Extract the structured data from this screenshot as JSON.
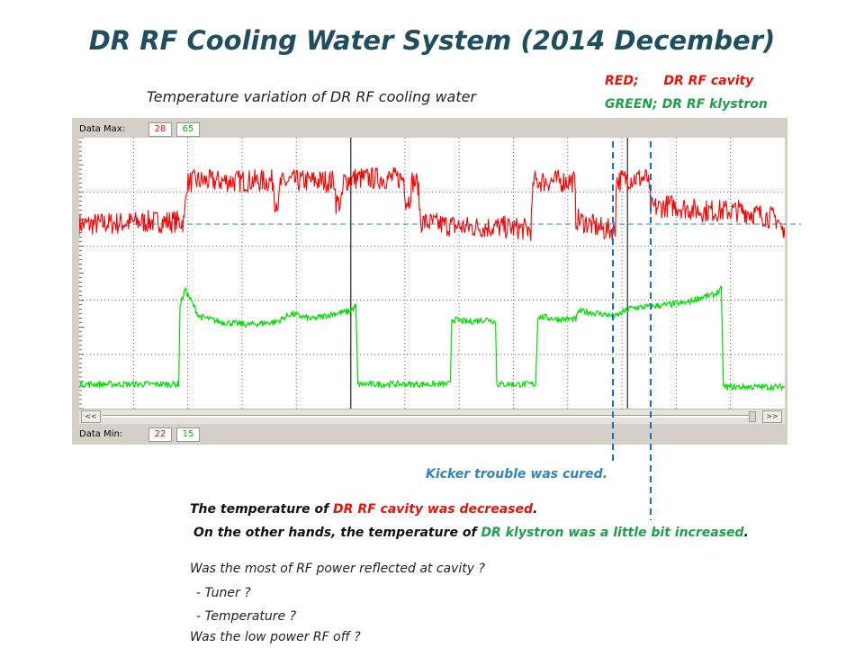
{
  "title": "DR RF Cooling Water System (2014 December)",
  "chart": {
    "subtitle": "Temperature variation of DR RF cooling water",
    "legend": {
      "red_label": "RED;",
      "red_name": "DR RF cavity",
      "green_label": "GREEN;",
      "green_name": "DR RF klystron"
    },
    "data_max_label": "Data Max:",
    "data_max_red": "28",
    "data_max_green": "65",
    "data_min_label": "Data Min:",
    "data_min_red": "22",
    "data_min_green": "15",
    "scroll_left": "<<",
    "scroll_right": ">>"
  },
  "chart_data": {
    "type": "line",
    "title": "Temperature variation of DR RF cooling water",
    "x_range": [
      0,
      100
    ],
    "y_range": [
      0,
      100
    ],
    "grid": true,
    "series": [
      {
        "name": "DR RF cavity",
        "color": "#ff0000",
        "points": [
          [
            0,
            68
          ],
          [
            1,
            68
          ],
          [
            10,
            69
          ],
          [
            14.9,
            69
          ],
          [
            15.2,
            83
          ],
          [
            16,
            84
          ],
          [
            20,
            84
          ],
          [
            25,
            84
          ],
          [
            27.5,
            84
          ],
          [
            27.7,
            77
          ],
          [
            28.3,
            76
          ],
          [
            28.5,
            83
          ],
          [
            30,
            84
          ],
          [
            33,
            84
          ],
          [
            36.2,
            84
          ],
          [
            36.4,
            76
          ],
          [
            37.2,
            76
          ],
          [
            37.5,
            84
          ],
          [
            39,
            85
          ],
          [
            46,
            85
          ],
          [
            46.3,
            77
          ],
          [
            46.8,
            77
          ],
          [
            47.2,
            84
          ],
          [
            48,
            83
          ],
          [
            48.4,
            69
          ],
          [
            51,
            68
          ],
          [
            55,
            67
          ],
          [
            60,
            67
          ],
          [
            64,
            66
          ],
          [
            64.4,
            84
          ],
          [
            66,
            84
          ],
          [
            70.2,
            84
          ],
          [
            70.4,
            70
          ],
          [
            74.4,
            66
          ],
          [
            76,
            66
          ],
          [
            76.1,
            84
          ],
          [
            78,
            85
          ],
          [
            80.6,
            85
          ],
          [
            81,
            74
          ],
          [
            84,
            75
          ],
          [
            88,
            73
          ],
          [
            94,
            73
          ],
          [
            99,
            70
          ],
          [
            100,
            63
          ]
        ]
      },
      {
        "name": "DR RF klystron",
        "color": "#00e000",
        "points": [
          [
            0,
            9
          ],
          [
            5,
            9
          ],
          [
            10,
            9
          ],
          [
            14.1,
            9
          ],
          [
            14.3,
            38
          ],
          [
            15,
            44
          ],
          [
            17,
            34
          ],
          [
            20,
            32
          ],
          [
            24,
            31
          ],
          [
            28,
            32
          ],
          [
            30,
            35
          ],
          [
            33,
            33
          ],
          [
            36,
            35
          ],
          [
            38.5,
            36
          ],
          [
            39.2,
            38
          ],
          [
            39.5,
            9
          ],
          [
            43,
            9
          ],
          [
            48,
            9
          ],
          [
            52.6,
            9
          ],
          [
            52.8,
            33
          ],
          [
            55,
            32
          ],
          [
            58,
            33
          ],
          [
            59,
            32
          ],
          [
            59.2,
            9
          ],
          [
            61,
            9
          ],
          [
            64.7,
            9
          ],
          [
            65,
            34
          ],
          [
            68,
            33
          ],
          [
            70.4,
            33
          ],
          [
            70.8,
            36
          ],
          [
            74,
            35
          ],
          [
            76,
            34
          ],
          [
            78,
            37
          ],
          [
            82,
            38
          ],
          [
            86,
            39
          ],
          [
            88,
            41
          ],
          [
            90,
            42
          ],
          [
            91,
            44
          ],
          [
            91.3,
            8
          ],
          [
            100,
            8
          ]
        ]
      }
    ]
  },
  "annotations": {
    "kicker": "Kicker trouble was cured.",
    "line1_prefix": "The temperature  of ",
    "line1_highlight": "DR RF cavity was decreased",
    "line1_suffix": ".",
    "line2_prefix": "On the other hands, the temperature  of ",
    "line2_highlight": "DR klystron  was a little bit increased",
    "line2_suffix": ".",
    "question1": "Was the  most of RF power reflected at cavity ?",
    "question2": "- Tuner ?",
    "question3": "-  Temperature  ?",
    "question4": "Was the low power RF off  ?"
  }
}
